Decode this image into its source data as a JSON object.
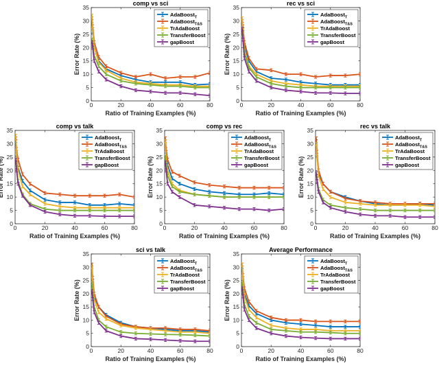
{
  "colors": {
    "AdaBoost_T": "#0072bd",
    "AdaBoost_TS": "#d95319",
    "TrAdaBoost": "#edb120",
    "TransferBoost": "#77ac30",
    "gapBoost": "#7e2f8e"
  },
  "chart_data": [
    {
      "type": "line",
      "title": "comp vs sci",
      "xlabel": "Ratio of Training Examples (%)",
      "ylabel": "Error Rate (%)",
      "xlim": [
        0,
        80
      ],
      "ylim": [
        0,
        35
      ],
      "xticks": [
        0,
        20,
        40,
        60,
        80
      ],
      "yticks": [
        0,
        5,
        10,
        15,
        20,
        25,
        30,
        35
      ],
      "x": [
        0.5,
        1,
        2,
        5,
        10,
        20,
        30,
        40,
        50,
        60,
        70,
        80
      ],
      "legend": [
        {
          "main": "AdaBoost",
          "sub": "T"
        },
        {
          "main": "AdaBoost",
          "sub": "T&S"
        },
        {
          "main": "TrAdaBoost",
          "sub": ""
        },
        {
          "main": "TransferBoost",
          "sub": ""
        },
        {
          "main": "gapBoost",
          "sub": ""
        }
      ],
      "series": [
        {
          "name": "AdaBoost_T",
          "values": [
            30,
            26,
            20,
            15,
            12,
            9.5,
            8,
            7,
            7,
            7,
            6,
            6.3
          ]
        },
        {
          "name": "AdaBoost_TS",
          "values": [
            31,
            28,
            22,
            16.5,
            13,
            10.5,
            9,
            10,
            8.5,
            9,
            9,
            10.5
          ]
        },
        {
          "name": "TrAdaBoost",
          "values": [
            32,
            27,
            20,
            14.5,
            11.5,
            8.5,
            7,
            6.5,
            6,
            6,
            5.5,
            5.5
          ]
        },
        {
          "name": "TransferBoost",
          "values": [
            23,
            21,
            17,
            13,
            10,
            7.5,
            6.5,
            6,
            5.5,
            5.5,
            5,
            5
          ]
        },
        {
          "name": "gapBoost",
          "values": [
            22,
            20,
            15,
            11,
            8,
            5.5,
            4,
            3.5,
            3,
            3,
            2.5,
            2
          ]
        }
      ]
    },
    {
      "type": "line",
      "title": "rec vs sci",
      "xlabel": "Ratio of Training Examples (%)",
      "ylabel": "Error Rate (%)",
      "xlim": [
        0,
        80
      ],
      "ylim": [
        0,
        35
      ],
      "xticks": [
        0,
        20,
        40,
        60,
        80
      ],
      "yticks": [
        0,
        5,
        10,
        15,
        20,
        25,
        30,
        35
      ],
      "x": [
        0.5,
        1,
        2,
        5,
        10,
        20,
        30,
        40,
        50,
        60,
        70,
        80
      ],
      "legend": [
        {
          "main": "AdaBoost",
          "sub": "T"
        },
        {
          "main": "AdaBoost",
          "sub": "T&S"
        },
        {
          "main": "TrAdaBoost",
          "sub": ""
        },
        {
          "main": "TransferBoost",
          "sub": ""
        },
        {
          "main": "gapBoost",
          "sub": ""
        }
      ],
      "series": [
        {
          "name": "AdaBoost_T",
          "values": [
            30,
            27,
            21,
            15,
            11,
            8.5,
            8,
            7,
            6.5,
            6,
            6,
            6
          ]
        },
        {
          "name": "AdaBoost_TS",
          "values": [
            30,
            28,
            22,
            16,
            12,
            11.5,
            10,
            10,
            9,
            9.5,
            9.5,
            10
          ]
        },
        {
          "name": "TrAdaBoost",
          "values": [
            31,
            26,
            19,
            13,
            10,
            7.5,
            6.5,
            6,
            5.5,
            5.5,
            5.5,
            5.5
          ]
        },
        {
          "name": "TransferBoost",
          "values": [
            27,
            24,
            18,
            12.5,
            9,
            6.5,
            5.5,
            5,
            5,
            5,
            5,
            5
          ]
        },
        {
          "name": "gapBoost",
          "values": [
            27,
            23,
            16,
            11,
            7.5,
            5,
            4,
            3.5,
            3,
            3,
            2.8,
            2.8
          ]
        }
      ]
    },
    {
      "type": "line",
      "title": "comp vs talk",
      "xlabel": "Ratio of Training Examples (%)",
      "ylabel": "Error Rate (%)",
      "xlim": [
        0,
        80
      ],
      "ylim": [
        0,
        35
      ],
      "xticks": [
        0,
        20,
        40,
        60,
        80
      ],
      "yticks": [
        0,
        5,
        10,
        15,
        20,
        25,
        30,
        35
      ],
      "x": [
        0.5,
        1,
        2,
        5,
        10,
        20,
        30,
        40,
        50,
        60,
        70,
        80
      ],
      "legend": [
        {
          "main": "AdaBoost",
          "sub": "T"
        },
        {
          "main": "AdaBoost",
          "sub": "T&S"
        },
        {
          "main": "TrAdaBoost",
          "sub": ""
        },
        {
          "main": "TransferBoost",
          "sub": ""
        },
        {
          "main": "gapBoost",
          "sub": ""
        }
      ],
      "series": [
        {
          "name": "AdaBoost_T",
          "values": [
            31,
            26,
            21,
            16,
            12.5,
            9,
            8,
            8,
            7,
            7,
            7.5,
            7
          ]
        },
        {
          "name": "AdaBoost_TS",
          "values": [
            32,
            28,
            24,
            18.5,
            15,
            11.5,
            11,
            10.5,
            10.5,
            10.5,
            11,
            10
          ]
        },
        {
          "name": "TrAdaBoost",
          "values": [
            33,
            27,
            20,
            14,
            11,
            7.5,
            6.5,
            6,
            6,
            6,
            6,
            6
          ]
        },
        {
          "name": "TransferBoost",
          "values": [
            24,
            21,
            16,
            11,
            7.5,
            5.5,
            5,
            5,
            5,
            5,
            5,
            5
          ]
        },
        {
          "name": "gapBoost",
          "values": [
            24,
            20,
            15,
            10.5,
            7,
            4.5,
            3.5,
            3,
            3,
            2.8,
            2.8,
            2.8
          ]
        }
      ]
    },
    {
      "type": "line",
      "title": "comp vs rec",
      "xlabel": "Ratio of Training Examples (%)",
      "ylabel": "Error Rate (%)",
      "xlim": [
        0,
        80
      ],
      "ylim": [
        0,
        35
      ],
      "xticks": [
        0,
        20,
        40,
        60,
        80
      ],
      "yticks": [
        0,
        5,
        10,
        15,
        20,
        25,
        30,
        35
      ],
      "x": [
        0.5,
        1,
        2,
        5,
        10,
        20,
        30,
        40,
        50,
        60,
        70,
        80
      ],
      "legend": [
        {
          "main": "AdaBoost",
          "sub": "T"
        },
        {
          "main": "AdaBoost",
          "sub": "T&S"
        },
        {
          "main": "TrAdaBoost",
          "sub": ""
        },
        {
          "main": "TransferBoost",
          "sub": ""
        },
        {
          "main": "gapBoost",
          "sub": ""
        }
      ],
      "series": [
        {
          "name": "AdaBoost_T",
          "values": [
            31,
            27,
            22,
            17,
            15,
            13,
            12,
            11.5,
            11,
            11,
            11.5,
            11
          ]
        },
        {
          "name": "AdaBoost_TS",
          "values": [
            32,
            28,
            24,
            19.5,
            18,
            15.5,
            14.5,
            14,
            13.5,
            13.5,
            13.5,
            13.5
          ]
        },
        {
          "name": "TrAdaBoost",
          "values": [
            31,
            25,
            20,
            15,
            12.5,
            11,
            10.5,
            10,
            10,
            10,
            10,
            10
          ]
        },
        {
          "name": "TransferBoost",
          "values": [
            25,
            22,
            18,
            14,
            12,
            11,
            10.5,
            10,
            10,
            10,
            10,
            10
          ]
        },
        {
          "name": "gapBoost",
          "values": [
            23,
            20,
            15,
            12,
            10,
            7,
            6.5,
            6,
            5.5,
            5.5,
            5,
            5.5
          ]
        }
      ]
    },
    {
      "type": "line",
      "title": "rec vs talk",
      "xlabel": "Ratio of Training Examples (%)",
      "ylabel": "Error Rate (%)",
      "xlim": [
        0,
        80
      ],
      "ylim": [
        0,
        35
      ],
      "xticks": [
        0,
        20,
        40,
        60,
        80
      ],
      "yticks": [
        0,
        5,
        10,
        15,
        20,
        25,
        30,
        35
      ],
      "x": [
        0.5,
        1,
        2,
        5,
        10,
        20,
        30,
        40,
        50,
        60,
        70,
        80
      ],
      "legend": [
        {
          "main": "AdaBoost",
          "sub": "T"
        },
        {
          "main": "AdaBoost",
          "sub": "T&S"
        },
        {
          "main": "TrAdaBoost",
          "sub": ""
        },
        {
          "main": "TransferBoost",
          "sub": ""
        },
        {
          "main": "gapBoost",
          "sub": ""
        }
      ],
      "series": [
        {
          "name": "AdaBoost_T",
          "values": [
            31,
            25,
            19,
            15,
            12,
            10,
            8.5,
            7.5,
            7,
            7,
            7.5,
            7
          ]
        },
        {
          "name": "AdaBoost_TS",
          "values": [
            32,
            27,
            20,
            15,
            12,
            9.5,
            8.5,
            8,
            7.5,
            7.5,
            7.5,
            7.5
          ]
        },
        {
          "name": "TrAdaBoost",
          "values": [
            30,
            25,
            18,
            13,
            10,
            8,
            7.5,
            7,
            7,
            7,
            7,
            6.5
          ]
        },
        {
          "name": "TransferBoost",
          "values": [
            19,
            17,
            13,
            9,
            7,
            6,
            5.5,
            5,
            5,
            5,
            5,
            5
          ]
        },
        {
          "name": "gapBoost",
          "values": [
            19,
            16,
            12,
            8,
            6,
            4.5,
            3.5,
            3,
            3,
            2.5,
            2.5,
            2.5
          ]
        }
      ]
    },
    {
      "type": "line",
      "title": "sci vs talk",
      "xlabel": "Ratio of Training Examples (%)",
      "ylabel": "Error Rate (%)",
      "xlim": [
        0,
        80
      ],
      "ylim": [
        0,
        35
      ],
      "xticks": [
        0,
        20,
        40,
        60,
        80
      ],
      "yticks": [
        0,
        5,
        10,
        15,
        20,
        25,
        30,
        35
      ],
      "x": [
        0.5,
        1,
        2,
        5,
        10,
        20,
        30,
        40,
        50,
        60,
        70,
        80
      ],
      "legend": [
        {
          "main": "AdaBoost",
          "sub": "T"
        },
        {
          "main": "AdaBoost",
          "sub": "T&S"
        },
        {
          "main": "TrAdaBoost",
          "sub": ""
        },
        {
          "main": "TransferBoost",
          "sub": ""
        },
        {
          "main": "gapBoost",
          "sub": ""
        }
      ],
      "series": [
        {
          "name": "AdaBoost_T",
          "values": [
            30,
            25,
            19,
            15,
            12,
            9,
            7.5,
            7,
            6.5,
            6,
            6,
            5.5
          ]
        },
        {
          "name": "AdaBoost_TS",
          "values": [
            31,
            26,
            20,
            15,
            11.5,
            8.5,
            7.5,
            7,
            7,
            6.5,
            6.5,
            6
          ]
        },
        {
          "name": "TrAdaBoost",
          "values": [
            30,
            24,
            18,
            13,
            10.5,
            8,
            7,
            6.5,
            6,
            5.5,
            5.5,
            5
          ]
        },
        {
          "name": "TransferBoost",
          "values": [
            24,
            20,
            15,
            10,
            7.5,
            5.5,
            5,
            4.8,
            4.6,
            4.5,
            4.3,
            4
          ]
        },
        {
          "name": "gapBoost",
          "values": [
            21,
            18,
            13,
            9,
            6,
            4,
            3,
            2.8,
            2.5,
            2.2,
            2,
            2
          ]
        }
      ]
    },
    {
      "type": "line",
      "title": "Average Performance",
      "xlabel": "Ratio of Training Examples (%)",
      "ylabel": "Error Rate (%)",
      "xlim": [
        0,
        80
      ],
      "ylim": [
        0,
        35
      ],
      "xticks": [
        0,
        20,
        40,
        60,
        80
      ],
      "yticks": [
        0,
        5,
        10,
        15,
        20,
        25,
        30,
        35
      ],
      "x": [
        0.5,
        1,
        2,
        5,
        10,
        20,
        30,
        40,
        50,
        60,
        70,
        80
      ],
      "legend": [
        {
          "main": "AdaBoost",
          "sub": "T"
        },
        {
          "main": "AdaBoost",
          "sub": "T&S"
        },
        {
          "main": "TrAdaBoost",
          "sub": ""
        },
        {
          "main": "TransferBoost",
          "sub": ""
        },
        {
          "main": "gapBoost",
          "sub": ""
        }
      ],
      "series": [
        {
          "name": "AdaBoost_T",
          "values": [
            30,
            26,
            20,
            15.5,
            12.5,
            10,
            9,
            8.5,
            8,
            7.5,
            7.5,
            7.5
          ]
        },
        {
          "name": "AdaBoost_TS",
          "values": [
            31,
            27,
            22,
            17,
            13.5,
            11,
            10,
            10,
            9.5,
            9.5,
            9.5,
            9.5
          ]
        },
        {
          "name": "TrAdaBoost",
          "values": [
            31,
            26,
            19,
            14,
            11,
            8,
            7,
            6.5,
            6.5,
            6,
            6,
            6
          ]
        },
        {
          "name": "TransferBoost",
          "values": [
            24,
            21,
            16,
            11.5,
            9,
            6.5,
            6,
            5.5,
            5.5,
            5.3,
            5,
            5
          ]
        },
        {
          "name": "gapBoost",
          "values": [
            22,
            19,
            14,
            10,
            7,
            5,
            4,
            3.5,
            3.2,
            3,
            3,
            3
          ]
        }
      ]
    }
  ]
}
